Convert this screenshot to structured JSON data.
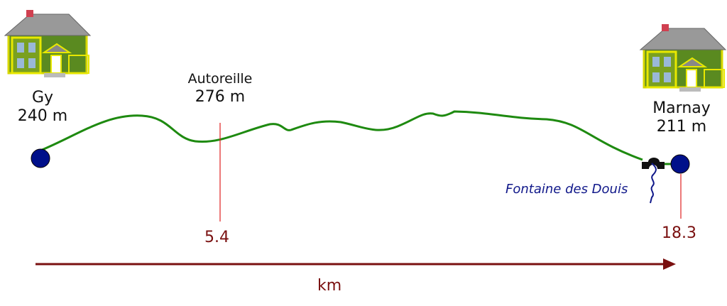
{
  "start": {
    "name": "Gy",
    "elevation": "240 m",
    "km": ""
  },
  "waypoint": {
    "name": "Autoreille",
    "elevation": "276 m",
    "km": "5.4"
  },
  "end": {
    "name": "Marnay",
    "elevation": "211 m",
    "km": "18.3"
  },
  "spring": {
    "name": "Fontaine des Douis"
  },
  "axis": {
    "label": "km"
  },
  "colors": {
    "profile": "#1e8a10",
    "marker": "#00108a",
    "axis": "#7a1010",
    "marker_line": "#e02020",
    "spring": "#10188a"
  },
  "icons": [
    "house-icon",
    "house-icon",
    "bridge-icon",
    "spring-icon"
  ]
}
